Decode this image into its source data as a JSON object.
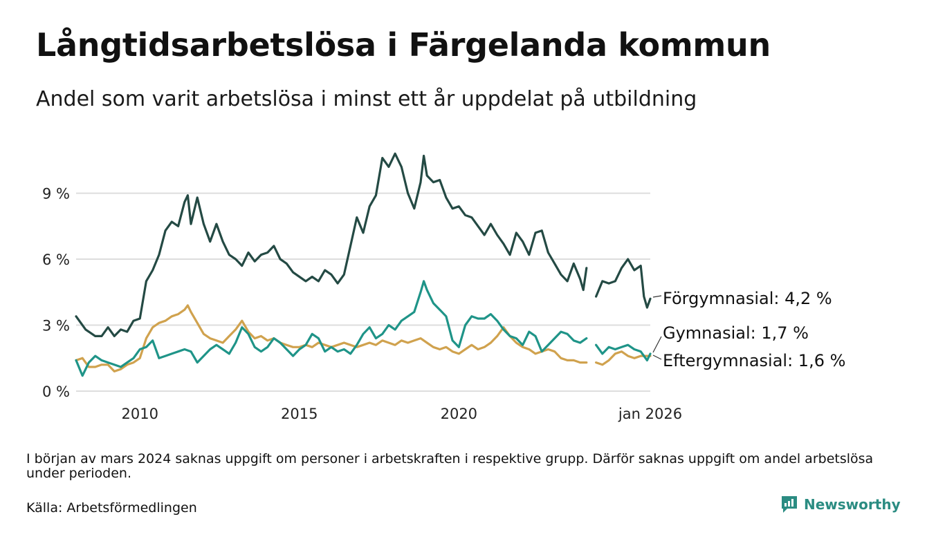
{
  "title": "Långtidsarbetslösa i Färgelanda kommun",
  "subtitle": "Andel som varit arbetslösa i minst ett år uppdelat på utbildning",
  "note": "I början av mars 2024 saknas uppgift om personer i arbetskraften i respektive grupp. Därför saknas uppgift om andel arbetslösa under perioden.",
  "source": "Källa: Arbetsförmedlingen",
  "brand": "Newsworthy",
  "colors": {
    "forgymnasial": "#244a44",
    "gymnasial": "#1f9488",
    "eftergymnasial": "#d0a24e",
    "grid": "#dddddd",
    "brand": "#2b8c82"
  },
  "chart_data": {
    "type": "line",
    "title": "Långtidsarbetslösa i Färgelanda kommun",
    "xlabel": "",
    "ylabel": "",
    "xlim": [
      2008.0,
      2026.0
    ],
    "ylim": [
      0,
      11.5
    ],
    "y_ticks": [
      0,
      3,
      6,
      9
    ],
    "y_tick_labels": [
      "0 %",
      "3 %",
      "6 %",
      "9 %"
    ],
    "x_ticks": [
      2010,
      2015,
      2020,
      2026
    ],
    "x_tick_labels": [
      "2010",
      "2015",
      "2020",
      "jan 2026"
    ],
    "grid": true,
    "gap": [
      2024.0,
      2024.3
    ],
    "series": [
      {
        "name": "Förgymnasial",
        "label": "Förgymnasial: 4,2 %",
        "color_key": "forgymnasial",
        "points": [
          [
            2008.0,
            3.4
          ],
          [
            2008.3,
            2.8
          ],
          [
            2008.6,
            2.5
          ],
          [
            2008.8,
            2.5
          ],
          [
            2009.0,
            2.9
          ],
          [
            2009.2,
            2.5
          ],
          [
            2009.4,
            2.8
          ],
          [
            2009.6,
            2.7
          ],
          [
            2009.8,
            3.2
          ],
          [
            2010.0,
            3.3
          ],
          [
            2010.2,
            5.0
          ],
          [
            2010.4,
            5.5
          ],
          [
            2010.6,
            6.2
          ],
          [
            2010.8,
            7.3
          ],
          [
            2011.0,
            7.7
          ],
          [
            2011.2,
            7.5
          ],
          [
            2011.4,
            8.6
          ],
          [
            2011.5,
            8.9
          ],
          [
            2011.6,
            7.6
          ],
          [
            2011.8,
            8.8
          ],
          [
            2012.0,
            7.6
          ],
          [
            2012.2,
            6.8
          ],
          [
            2012.4,
            7.6
          ],
          [
            2012.6,
            6.8
          ],
          [
            2012.8,
            6.2
          ],
          [
            2013.0,
            6.0
          ],
          [
            2013.2,
            5.7
          ],
          [
            2013.4,
            6.3
          ],
          [
            2013.6,
            5.9
          ],
          [
            2013.8,
            6.2
          ],
          [
            2014.0,
            6.3
          ],
          [
            2014.2,
            6.6
          ],
          [
            2014.4,
            6.0
          ],
          [
            2014.6,
            5.8
          ],
          [
            2014.8,
            5.4
          ],
          [
            2015.0,
            5.2
          ],
          [
            2015.2,
            5.0
          ],
          [
            2015.4,
            5.2
          ],
          [
            2015.6,
            5.0
          ],
          [
            2015.8,
            5.5
          ],
          [
            2016.0,
            5.3
          ],
          [
            2016.2,
            4.9
          ],
          [
            2016.4,
            5.3
          ],
          [
            2016.6,
            6.6
          ],
          [
            2016.8,
            7.9
          ],
          [
            2017.0,
            7.2
          ],
          [
            2017.2,
            8.4
          ],
          [
            2017.4,
            8.9
          ],
          [
            2017.6,
            10.6
          ],
          [
            2017.8,
            10.2
          ],
          [
            2018.0,
            10.8
          ],
          [
            2018.2,
            10.2
          ],
          [
            2018.4,
            9.0
          ],
          [
            2018.6,
            8.3
          ],
          [
            2018.8,
            9.5
          ],
          [
            2018.9,
            10.7
          ],
          [
            2019.0,
            9.8
          ],
          [
            2019.2,
            9.5
          ],
          [
            2019.4,
            9.6
          ],
          [
            2019.6,
            8.8
          ],
          [
            2019.8,
            8.3
          ],
          [
            2020.0,
            8.4
          ],
          [
            2020.2,
            8.0
          ],
          [
            2020.4,
            7.9
          ],
          [
            2020.6,
            7.5
          ],
          [
            2020.8,
            7.1
          ],
          [
            2021.0,
            7.6
          ],
          [
            2021.2,
            7.1
          ],
          [
            2021.4,
            6.7
          ],
          [
            2021.6,
            6.2
          ],
          [
            2021.8,
            7.2
          ],
          [
            2022.0,
            6.8
          ],
          [
            2022.2,
            6.2
          ],
          [
            2022.4,
            7.2
          ],
          [
            2022.6,
            7.3
          ],
          [
            2022.8,
            6.3
          ],
          [
            2023.0,
            5.8
          ],
          [
            2023.2,
            5.3
          ],
          [
            2023.4,
            5.0
          ],
          [
            2023.6,
            5.8
          ],
          [
            2023.8,
            5.1
          ],
          [
            2023.9,
            4.6
          ],
          [
            2024.0,
            5.6
          ],
          [
            2024.3,
            4.3
          ],
          [
            2024.5,
            5.0
          ],
          [
            2024.7,
            4.9
          ],
          [
            2024.9,
            5.0
          ],
          [
            2025.1,
            5.6
          ],
          [
            2025.3,
            6.0
          ],
          [
            2025.5,
            5.5
          ],
          [
            2025.7,
            5.7
          ],
          [
            2025.8,
            4.3
          ],
          [
            2025.9,
            3.8
          ],
          [
            2026.0,
            4.2
          ]
        ]
      },
      {
        "name": "Gymnasial",
        "label": "Gymnasial: 1,7 %",
        "color_key": "gymnasial",
        "points": [
          [
            2008.0,
            1.4
          ],
          [
            2008.2,
            0.7
          ],
          [
            2008.4,
            1.3
          ],
          [
            2008.6,
            1.6
          ],
          [
            2008.8,
            1.4
          ],
          [
            2009.0,
            1.3
          ],
          [
            2009.2,
            1.2
          ],
          [
            2009.4,
            1.1
          ],
          [
            2009.6,
            1.3
          ],
          [
            2009.8,
            1.5
          ],
          [
            2010.0,
            1.9
          ],
          [
            2010.2,
            2.0
          ],
          [
            2010.4,
            2.3
          ],
          [
            2010.6,
            1.5
          ],
          [
            2010.8,
            1.6
          ],
          [
            2011.0,
            1.7
          ],
          [
            2011.2,
            1.8
          ],
          [
            2011.4,
            1.9
          ],
          [
            2011.6,
            1.8
          ],
          [
            2011.8,
            1.3
          ],
          [
            2012.0,
            1.6
          ],
          [
            2012.2,
            1.9
          ],
          [
            2012.4,
            2.1
          ],
          [
            2012.6,
            1.9
          ],
          [
            2012.8,
            1.7
          ],
          [
            2013.0,
            2.2
          ],
          [
            2013.2,
            2.9
          ],
          [
            2013.4,
            2.6
          ],
          [
            2013.6,
            2.0
          ],
          [
            2013.8,
            1.8
          ],
          [
            2014.0,
            2.0
          ],
          [
            2014.2,
            2.4
          ],
          [
            2014.4,
            2.2
          ],
          [
            2014.6,
            1.9
          ],
          [
            2014.8,
            1.6
          ],
          [
            2015.0,
            1.9
          ],
          [
            2015.2,
            2.1
          ],
          [
            2015.4,
            2.6
          ],
          [
            2015.6,
            2.4
          ],
          [
            2015.8,
            1.8
          ],
          [
            2016.0,
            2.0
          ],
          [
            2016.2,
            1.8
          ],
          [
            2016.4,
            1.9
          ],
          [
            2016.6,
            1.7
          ],
          [
            2016.8,
            2.1
          ],
          [
            2017.0,
            2.6
          ],
          [
            2017.2,
            2.9
          ],
          [
            2017.4,
            2.4
          ],
          [
            2017.6,
            2.6
          ],
          [
            2017.8,
            3.0
          ],
          [
            2018.0,
            2.8
          ],
          [
            2018.2,
            3.2
          ],
          [
            2018.4,
            3.4
          ],
          [
            2018.6,
            3.6
          ],
          [
            2018.8,
            4.5
          ],
          [
            2018.9,
            5.0
          ],
          [
            2019.0,
            4.6
          ],
          [
            2019.2,
            4.0
          ],
          [
            2019.4,
            3.7
          ],
          [
            2019.6,
            3.4
          ],
          [
            2019.8,
            2.3
          ],
          [
            2020.0,
            2.0
          ],
          [
            2020.2,
            3.0
          ],
          [
            2020.4,
            3.4
          ],
          [
            2020.6,
            3.3
          ],
          [
            2020.8,
            3.3
          ],
          [
            2021.0,
            3.5
          ],
          [
            2021.2,
            3.2
          ],
          [
            2021.4,
            2.8
          ],
          [
            2021.6,
            2.5
          ],
          [
            2021.8,
            2.4
          ],
          [
            2022.0,
            2.1
          ],
          [
            2022.2,
            2.7
          ],
          [
            2022.4,
            2.5
          ],
          [
            2022.6,
            1.8
          ],
          [
            2022.8,
            2.1
          ],
          [
            2023.0,
            2.4
          ],
          [
            2023.2,
            2.7
          ],
          [
            2023.4,
            2.6
          ],
          [
            2023.6,
            2.3
          ],
          [
            2023.8,
            2.2
          ],
          [
            2024.0,
            2.4
          ],
          [
            2024.3,
            2.1
          ],
          [
            2024.5,
            1.7
          ],
          [
            2024.7,
            2.0
          ],
          [
            2024.9,
            1.9
          ],
          [
            2025.1,
            2.0
          ],
          [
            2025.3,
            2.1
          ],
          [
            2025.5,
            1.9
          ],
          [
            2025.7,
            1.8
          ],
          [
            2025.9,
            1.4
          ],
          [
            2026.0,
            1.7
          ]
        ]
      },
      {
        "name": "Eftergymnasial",
        "label": "Eftergymnasial: 1,6 %",
        "color_key": "eftergymnasial",
        "points": [
          [
            2008.0,
            1.4
          ],
          [
            2008.2,
            1.5
          ],
          [
            2008.4,
            1.1
          ],
          [
            2008.6,
            1.1
          ],
          [
            2008.8,
            1.2
          ],
          [
            2009.0,
            1.2
          ],
          [
            2009.2,
            0.9
          ],
          [
            2009.4,
            1.0
          ],
          [
            2009.6,
            1.2
          ],
          [
            2009.8,
            1.3
          ],
          [
            2010.0,
            1.5
          ],
          [
            2010.2,
            2.4
          ],
          [
            2010.4,
            2.9
          ],
          [
            2010.6,
            3.1
          ],
          [
            2010.8,
            3.2
          ],
          [
            2011.0,
            3.4
          ],
          [
            2011.2,
            3.5
          ],
          [
            2011.4,
            3.7
          ],
          [
            2011.5,
            3.9
          ],
          [
            2011.6,
            3.6
          ],
          [
            2011.8,
            3.1
          ],
          [
            2012.0,
            2.6
          ],
          [
            2012.2,
            2.4
          ],
          [
            2012.4,
            2.3
          ],
          [
            2012.6,
            2.2
          ],
          [
            2012.8,
            2.5
          ],
          [
            2013.0,
            2.8
          ],
          [
            2013.2,
            3.2
          ],
          [
            2013.4,
            2.7
          ],
          [
            2013.6,
            2.4
          ],
          [
            2013.8,
            2.5
          ],
          [
            2014.0,
            2.3
          ],
          [
            2014.2,
            2.4
          ],
          [
            2014.4,
            2.2
          ],
          [
            2014.6,
            2.1
          ],
          [
            2014.8,
            2.0
          ],
          [
            2015.0,
            2.0
          ],
          [
            2015.2,
            2.1
          ],
          [
            2015.4,
            2.0
          ],
          [
            2015.6,
            2.2
          ],
          [
            2015.8,
            2.1
          ],
          [
            2016.0,
            2.0
          ],
          [
            2016.2,
            2.1
          ],
          [
            2016.4,
            2.2
          ],
          [
            2016.6,
            2.1
          ],
          [
            2016.8,
            2.0
          ],
          [
            2017.0,
            2.1
          ],
          [
            2017.2,
            2.2
          ],
          [
            2017.4,
            2.1
          ],
          [
            2017.6,
            2.3
          ],
          [
            2017.8,
            2.2
          ],
          [
            2018.0,
            2.1
          ],
          [
            2018.2,
            2.3
          ],
          [
            2018.4,
            2.2
          ],
          [
            2018.6,
            2.3
          ],
          [
            2018.8,
            2.4
          ],
          [
            2019.0,
            2.2
          ],
          [
            2019.2,
            2.0
          ],
          [
            2019.4,
            1.9
          ],
          [
            2019.6,
            2.0
          ],
          [
            2019.8,
            1.8
          ],
          [
            2020.0,
            1.7
          ],
          [
            2020.2,
            1.9
          ],
          [
            2020.4,
            2.1
          ],
          [
            2020.6,
            1.9
          ],
          [
            2020.8,
            2.0
          ],
          [
            2021.0,
            2.2
          ],
          [
            2021.2,
            2.5
          ],
          [
            2021.4,
            2.9
          ],
          [
            2021.6,
            2.5
          ],
          [
            2021.8,
            2.2
          ],
          [
            2022.0,
            2.0
          ],
          [
            2022.2,
            1.9
          ],
          [
            2022.4,
            1.7
          ],
          [
            2022.6,
            1.8
          ],
          [
            2022.8,
            1.9
          ],
          [
            2023.0,
            1.8
          ],
          [
            2023.2,
            1.5
          ],
          [
            2023.4,
            1.4
          ],
          [
            2023.6,
            1.4
          ],
          [
            2023.8,
            1.3
          ],
          [
            2024.0,
            1.3
          ],
          [
            2024.3,
            1.3
          ],
          [
            2024.5,
            1.2
          ],
          [
            2024.7,
            1.4
          ],
          [
            2024.9,
            1.7
          ],
          [
            2025.1,
            1.8
          ],
          [
            2025.3,
            1.6
          ],
          [
            2025.5,
            1.5
          ],
          [
            2025.7,
            1.6
          ],
          [
            2025.9,
            1.6
          ],
          [
            2026.0,
            1.6
          ]
        ]
      }
    ]
  }
}
